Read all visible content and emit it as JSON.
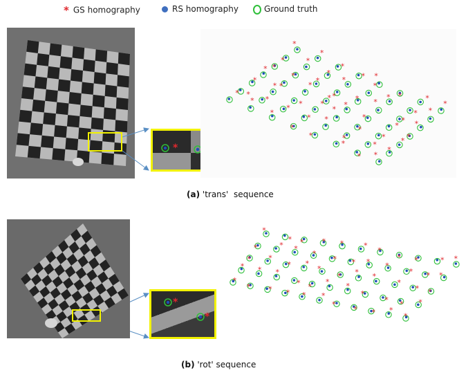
{
  "legend": {
    "gs_label": "GS homography",
    "rs_label": "RS homography",
    "gt_label": "Ground truth"
  },
  "colors": {
    "gs": "#e0282e",
    "rs": "#1d4fb8",
    "gt": "#2fbf3a",
    "highlight": "#f2f200",
    "arrow": "#5a8fc4"
  },
  "panel_a": {
    "label": "(a)",
    "caption": " 'trans'  sequence"
  },
  "panel_b": {
    "label": "(b)",
    "caption": " 'rot' sequence"
  }
}
